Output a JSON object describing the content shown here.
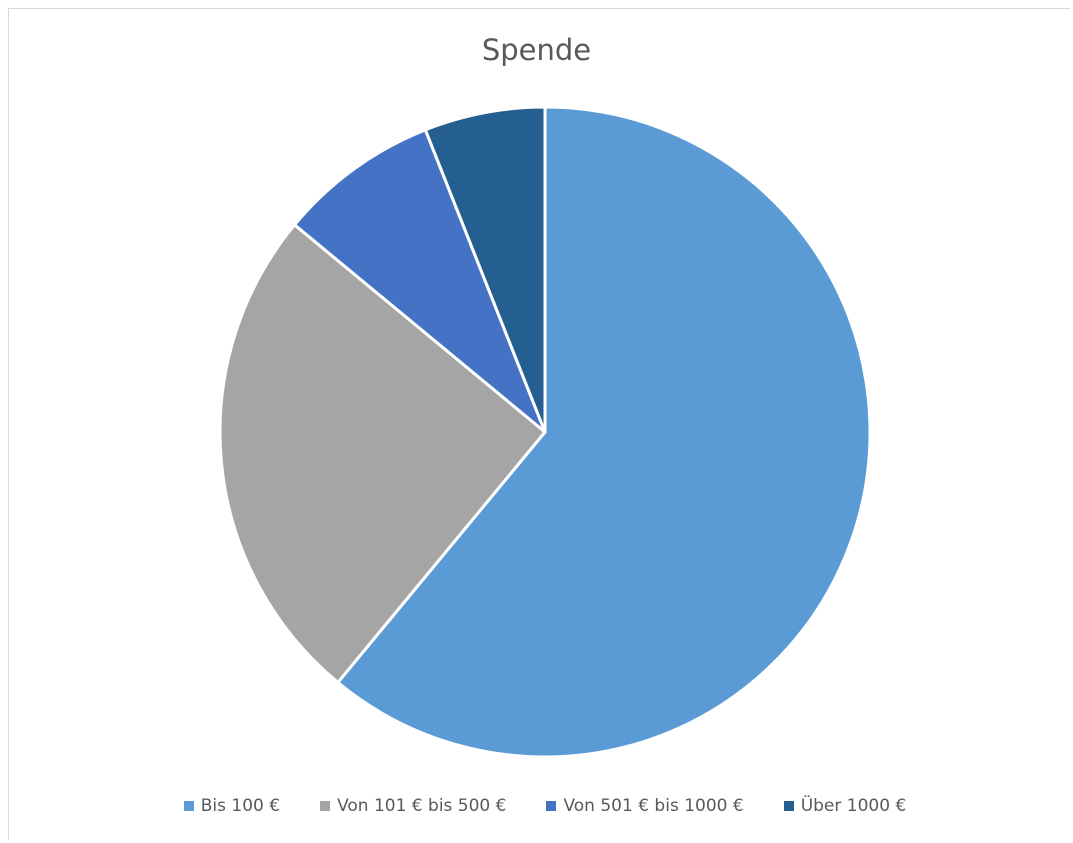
{
  "chart_data": {
    "type": "pie",
    "title": "Spende",
    "categories": [
      "Bis 100 €",
      "Von 101 € bis 500 €",
      "Von 501 € bis 1000 €",
      "Über 1000 €"
    ],
    "values": [
      61,
      25,
      8,
      6
    ],
    "colors": [
      "#5B9BD5",
      "#A5A5A5",
      "#4472C4",
      "#255E91"
    ],
    "legend": "bottom"
  }
}
